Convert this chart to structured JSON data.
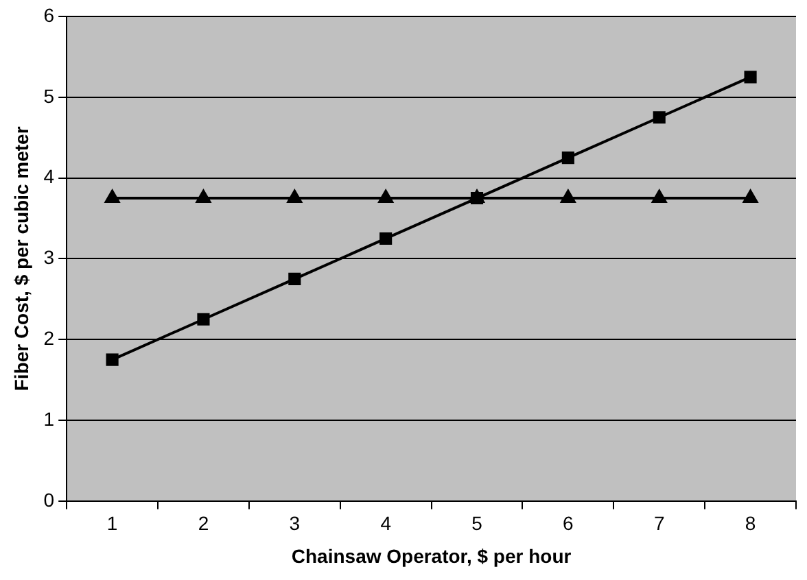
{
  "chart_data": {
    "type": "line",
    "xlabel": "Chainsaw Operator, $ per hour",
    "ylabel": "Fiber Cost, $ per cubic meter",
    "categories": [
      "1",
      "2",
      "3",
      "4",
      "5",
      "6",
      "7",
      "8"
    ],
    "series": [
      {
        "color": "#000000",
        "marker": "square",
        "values": [
          1.75,
          2.25,
          2.75,
          3.25,
          3.75,
          4.25,
          4.75,
          5.25
        ]
      },
      {
        "color": "#000000",
        "marker": "triangle",
        "values": [
          3.75,
          3.75,
          3.75,
          3.75,
          3.75,
          3.75,
          3.75,
          3.75
        ]
      }
    ],
    "ylim": [
      0,
      6
    ],
    "yticks": [
      0,
      1,
      2,
      3,
      4,
      5,
      6
    ],
    "grid": "y",
    "legend": false
  }
}
